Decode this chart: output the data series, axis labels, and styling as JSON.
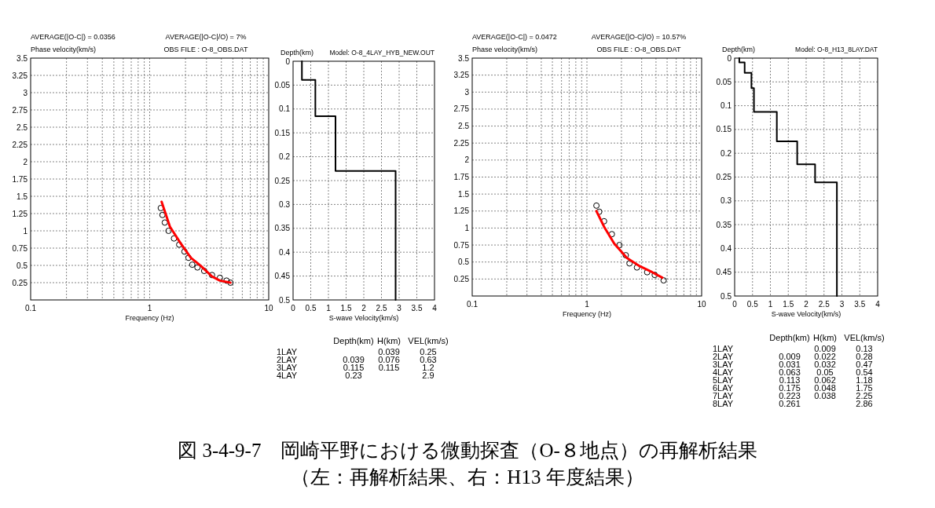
{
  "chart_data": [
    {
      "type": "scatter",
      "ylabel": "Phase velocity(km/s)",
      "xlabel": "Frequency (Hz)",
      "log": "x",
      "grid": true,
      "xlim": [
        0.1,
        10
      ],
      "ylim": [
        0,
        3.5
      ],
      "xticks": [
        0.1,
        1,
        10
      ],
      "yticks": [
        0.25,
        0.5,
        0.75,
        1,
        1.25,
        1.5,
        1.75,
        2,
        2.25,
        2.5,
        2.75,
        3,
        3.25,
        3.5
      ],
      "annotations": [
        "AVERAGE(|O-C|) = 0.0356",
        "AVERAGE(|O-C|/O) = 7%",
        "OBS FILE : O-8_OBS.DAT"
      ],
      "series": [
        {
          "type": "scatter",
          "marker": "circle",
          "color": "#000000",
          "x": [
            1.24,
            1.28,
            1.34,
            1.44,
            1.6,
            1.77,
            1.96,
            2.12,
            2.28,
            2.52,
            2.87,
            3.34,
            3.89,
            4.42,
            4.77
          ],
          "values": [
            1.33,
            1.23,
            1.12,
            1.0,
            0.89,
            0.8,
            0.7,
            0.61,
            0.51,
            0.47,
            0.42,
            0.36,
            0.32,
            0.28,
            0.25
          ]
        },
        {
          "type": "line",
          "color": "#ff0000",
          "x": [
            1.26,
            1.48,
            1.82,
            2.22,
            2.7,
            3.34,
            3.89,
            4.77
          ],
          "values": [
            1.42,
            1.06,
            0.82,
            0.61,
            0.49,
            0.34,
            0.28,
            0.25
          ]
        }
      ]
    },
    {
      "type": "line",
      "title": "Model: O-8_4LAY_HYB_NEW.OUT",
      "ylabel": "Depth(km)",
      "xlabel": "S-wave Velocity(km/s)",
      "grid": true,
      "xlim": [
        0,
        4
      ],
      "ylim": [
        0.5,
        0
      ],
      "xticks": [
        0,
        0.5,
        1,
        1.5,
        2,
        2.5,
        3,
        3.5,
        4
      ],
      "yticks": [
        0,
        0.05,
        0.1,
        0.15,
        0.2,
        0.25,
        0.3,
        0.35,
        0.4,
        0.45,
        0.5
      ],
      "annotations": [
        "\tDepth(km)\tH(km)\tVEL(km/s)",
        "1LAY\t\t0.039\t0.25",
        "2LAY\t0.039\t0.076\t0.63",
        "3LAY\t0.115\t0.115\t1.2",
        "4LAY\t0.23\t\t2.9"
      ],
      "series": [
        {
          "color": "#000000",
          "x": [
            0.25,
            0.25,
            0.63,
            0.63,
            1.2,
            1.2,
            2.9,
            2.9
          ],
          "values": [
            0,
            0.039,
            0.039,
            0.115,
            0.115,
            0.23,
            0.23,
            0.5
          ]
        }
      ]
    },
    {
      "type": "scatter",
      "ylabel": "Phase velocity(km/s)",
      "xlabel": "Frequency (Hz)",
      "log": "x",
      "grid": true,
      "xlim": [
        0.1,
        10
      ],
      "ylim": [
        0,
        3.5
      ],
      "xticks": [
        0.1,
        1,
        10
      ],
      "yticks": [
        0.25,
        0.5,
        0.75,
        1,
        1.25,
        1.5,
        1.75,
        2,
        2.25,
        2.5,
        2.75,
        3,
        3.25,
        3.5
      ],
      "annotations": [
        "AVERAGE(|O-C|) = 0.0472",
        "AVERAGE(|O-C|/O) = 10.57%",
        "OBS FILE : O-8_OBS.DAT"
      ],
      "series": [
        {
          "type": "scatter",
          "marker": "circle",
          "color": "#000000",
          "x": [
            1.21,
            1.28,
            1.41,
            1.65,
            1.92,
            2.18,
            2.35,
            2.73,
            3.35,
            3.9,
            4.66
          ],
          "values": [
            1.33,
            1.24,
            1.1,
            0.91,
            0.75,
            0.6,
            0.48,
            0.42,
            0.35,
            0.31,
            0.23
          ]
        },
        {
          "type": "line",
          "color": "#ff0000",
          "x": [
            1.21,
            1.41,
            1.73,
            2.23,
            2.88,
            3.71,
            4.54
          ],
          "values": [
            1.25,
            1.02,
            0.77,
            0.56,
            0.44,
            0.35,
            0.27
          ]
        }
      ]
    },
    {
      "type": "line",
      "title": "Model: O-8_H13_8LAY.DAT",
      "ylabel": "Depth(km)",
      "xlabel": "S-wave Velocity(km/s)",
      "grid": true,
      "xlim": [
        0,
        4
      ],
      "ylim": [
        0.5,
        0
      ],
      "xticks": [
        0,
        0.5,
        1,
        1.5,
        2,
        2.5,
        3,
        3.5,
        4
      ],
      "yticks": [
        0,
        0.05,
        0.1,
        0.15,
        0.2,
        0.25,
        0.3,
        0.35,
        0.4,
        0.45,
        0.5
      ],
      "annotations": [
        "\tDepth(km)\tH(km)\tVEL(km/s)",
        "1LAY\t\t0.009\t0.13",
        "2LAY\t0.009\t0.022\t0.28",
        "3LAY\t0.031\t0.032\t0.47",
        "4LAY\t0.063\t0.05\t0.54",
        "5LAY\t0.113\t0.062\t1.18",
        "6LAY\t0.175\t0.048\t1.75",
        "7LAY\t0.223\t0.038\t2.25",
        "8LAY\t0.261\t\t2.86"
      ],
      "series": [
        {
          "color": "#000000",
          "x": [
            0.13,
            0.13,
            0.28,
            0.28,
            0.47,
            0.47,
            0.54,
            0.54,
            1.18,
            1.18,
            1.75,
            1.75,
            2.25,
            2.25,
            2.86,
            2.86
          ],
          "values": [
            0,
            0.009,
            0.009,
            0.031,
            0.031,
            0.063,
            0.063,
            0.113,
            0.113,
            0.175,
            0.175,
            0.223,
            0.223,
            0.261,
            0.261,
            0.5
          ]
        }
      ]
    },
    {
      "type": "other",
      "title": "図 3-4-9-7　岡崎平野における微動探査（O-８地点）の再解析結果",
      "subtitle": "（左：再解析結果、右：H13 年度結果）"
    }
  ]
}
